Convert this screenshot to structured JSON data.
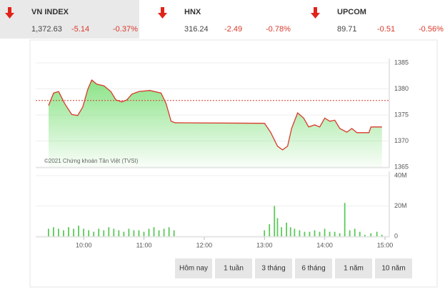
{
  "indices": [
    {
      "name": "VN INDEX",
      "value": "1,372.63",
      "change": "-5.14",
      "percent": "-0.37%"
    },
    {
      "name": "HNX",
      "value": "316.24",
      "change": "-2.49",
      "percent": "-0.78%"
    },
    {
      "name": "UPCOM",
      "value": "89.71",
      "change": "-0.51",
      "percent": "-0.56%"
    }
  ],
  "chart_data": [
    {
      "type": "line",
      "annotation": "©2021 Chứng khoán Tân Việt (TVSI)",
      "x": [
        565,
        570,
        575,
        581,
        588,
        594,
        599,
        604,
        608,
        613,
        620,
        627,
        632,
        638,
        643,
        648,
        655,
        666,
        677,
        682,
        687,
        691,
        780,
        786,
        793,
        798,
        803,
        807,
        813,
        819,
        824,
        830,
        835,
        840,
        845,
        850,
        855,
        862,
        867,
        872,
        884,
        886,
        897
      ],
      "series": [
        {
          "color": "#d9392b",
          "values": [
            1376.8,
            1379.2,
            1379.5,
            1377.2,
            1375.1,
            1374.9,
            1376.5,
            1379.9,
            1381.7,
            1380.9,
            1380.6,
            1379.5,
            1377.9,
            1377.5,
            1377.9,
            1379,
            1379.5,
            1379.7,
            1379.2,
            1377.2,
            1373.8,
            1373.5,
            1373.4,
            1371.7,
            1369,
            1368.3,
            1369,
            1372.4,
            1375.4,
            1374.4,
            1372.7,
            1373.1,
            1372.7,
            1374.4,
            1373.8,
            1374,
            1372.4,
            1371.7,
            1372.4,
            1371.6,
            1371.6,
            1372.7,
            1372.7
          ]
        }
      ],
      "reference_line": 1377.77,
      "reference_color": "#d9392b",
      "fill_color": "#7ee07a",
      "xlim": [
        565,
        900
      ],
      "ylim": [
        1365,
        1385
      ],
      "yticks": [
        1365,
        1370,
        1375,
        1380,
        1385
      ]
    },
    {
      "type": "bar",
      "color": "#5cc95a",
      "x": [
        565,
        570,
        575,
        580,
        585,
        590,
        595,
        600,
        605,
        610,
        615,
        620,
        625,
        630,
        635,
        640,
        645,
        650,
        655,
        660,
        665,
        670,
        675,
        680,
        685,
        690,
        780,
        785,
        790,
        793,
        797,
        802,
        806,
        810,
        815,
        820,
        825,
        830,
        835,
        840,
        845,
        850,
        855,
        860,
        865,
        870,
        875,
        880,
        886,
        892,
        897
      ],
      "values": [
        5,
        6,
        5,
        4,
        6,
        5,
        7,
        5,
        4,
        3,
        5,
        4,
        6,
        5,
        4,
        3,
        5,
        4,
        4,
        3,
        5,
        6,
        4,
        5,
        6,
        4,
        4,
        8,
        20,
        12,
        6,
        9,
        6,
        5,
        4,
        3,
        3,
        4,
        3,
        5,
        3,
        3,
        2,
        22,
        4,
        5,
        3,
        1,
        2,
        3,
        1
      ],
      "xlim": [
        565,
        900
      ],
      "ylim": [
        0,
        40
      ],
      "yticks": [
        0,
        {
          "value": 20,
          "label": "20M"
        },
        {
          "value": 40,
          "label": "40M"
        }
      ],
      "xticks": [
        {
          "value": 600,
          "label": "10:00"
        },
        {
          "value": 660,
          "label": "11:00"
        },
        {
          "value": 720,
          "label": "12:00"
        },
        {
          "value": 780,
          "label": "13:00"
        },
        {
          "value": 840,
          "label": "14:00"
        },
        {
          "value": 900,
          "label": "15:00"
        }
      ]
    }
  ],
  "buttons": [
    "Hôm nay",
    "1 tuần",
    "3 tháng",
    "6 tháng",
    "1 năm",
    "10 năm"
  ]
}
